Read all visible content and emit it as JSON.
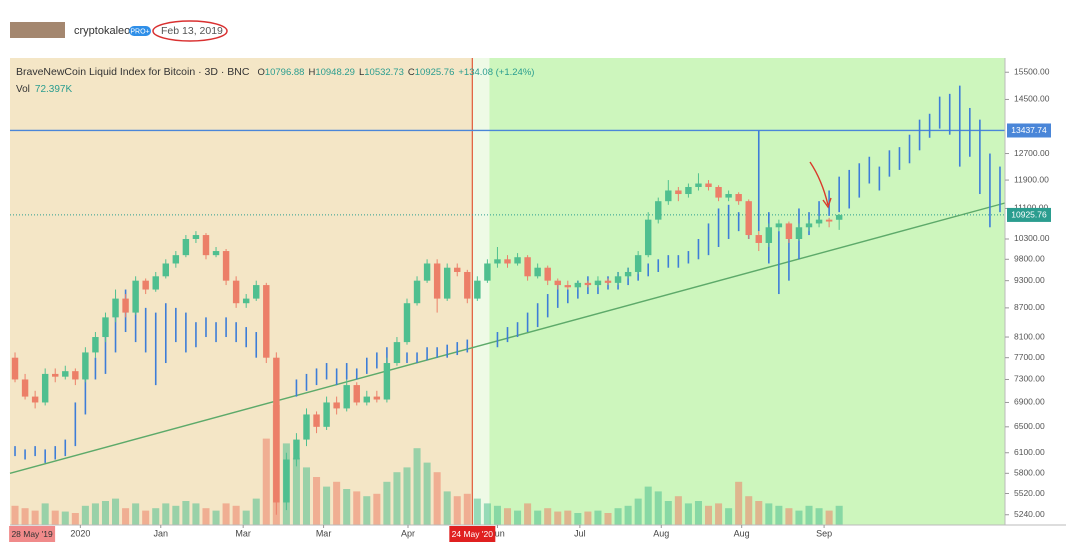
{
  "header": {
    "user": "cryptokaleo",
    "badge": "PRO+",
    "date": "Feb 13, 2019"
  },
  "chart_data": {
    "type": "candlestick",
    "legend": {
      "title": "BraveNewCoin Liquid Index for Bitcoin · 3D · BNC",
      "ohlc": [
        {
          "key": "O",
          "value": 10796.88
        },
        {
          "key": "H",
          "value": 10948.29
        },
        {
          "key": "L",
          "value": 10532.73
        },
        {
          "key": "C",
          "value": 10925.76
        }
      ],
      "change": "+134.08 (+1.24%)",
      "volume_key": "Vol",
      "volume": "72.397K"
    },
    "log_scale": true,
    "xlim": [
      -0.5,
      98.5
    ],
    "ylim": [
      5110,
      16050
    ],
    "yticks": [
      {
        "value": 15500,
        "label": "15500.00"
      },
      {
        "value": 14500,
        "label": "14500.00"
      },
      {
        "value": 12700,
        "label": "12700.00"
      },
      {
        "value": 11900,
        "label": "11900.00"
      },
      {
        "value": 11100,
        "label": "11100.00"
      },
      {
        "value": 10300,
        "label": "10300.00"
      },
      {
        "value": 9800,
        "label": "9800.00"
      },
      {
        "value": 9300,
        "label": "9300.00"
      },
      {
        "value": 8700,
        "label": "8700.00"
      },
      {
        "value": 8100,
        "label": "8100.00"
      },
      {
        "value": 7700,
        "label": "7700.00"
      },
      {
        "value": 7300,
        "label": "7300.00"
      },
      {
        "value": 6900,
        "label": "6900.00"
      },
      {
        "value": 6500,
        "label": "6500.00"
      },
      {
        "value": 6100,
        "label": "6100.00"
      },
      {
        "value": 5800,
        "label": "5800.00"
      },
      {
        "value": 5520,
        "label": "5520.00"
      },
      {
        "value": 5240,
        "label": "5240.00"
      }
    ],
    "xticks": [
      {
        "value": 6.5,
        "label": "2020"
      },
      {
        "value": 14.5,
        "label": "Jan"
      },
      {
        "value": 22.7,
        "label": "Mar"
      },
      {
        "value": 30.7,
        "label": "Mar"
      },
      {
        "value": 39.1,
        "label": "Apr"
      },
      {
        "value": 48,
        "label": "Jun"
      },
      {
        "value": 56.2,
        "label": "Jul"
      },
      {
        "value": 64.3,
        "label": "Aug"
      },
      {
        "value": 72.3,
        "label": "Aug"
      },
      {
        "value": 80.5,
        "label": "Sep"
      }
    ],
    "date_labels": [
      {
        "x": 1.7,
        "label": "28 May '19"
      },
      {
        "x": 45.5,
        "label": "24 May '20"
      }
    ],
    "regions": [
      {
        "x": [
          -0.5,
          45.5
        ],
        "color": "#f4e6c6"
      },
      {
        "x": [
          45.5,
          47.2
        ],
        "color": "#eefae6"
      },
      {
        "x": [
          47.2,
          98.5
        ],
        "color": "#cdf6bd"
      }
    ],
    "marker_line": {
      "x": 45.5,
      "color": "#e0593a"
    },
    "hline": {
      "y": 13437.74,
      "color": "#4a86d8"
    },
    "last_price": {
      "y": 10925.76,
      "color": "#2a9d8f"
    },
    "trend_line": {
      "x": [
        -0.5,
        98.5
      ],
      "y": [
        5800,
        11250
      ],
      "color": "#5daa6a"
    },
    "candles": {
      "up_color": "#4fbf8f",
      "down_color": "#ec7f68",
      "values": [
        [
          7700,
          7800,
          7250,
          7300
        ],
        [
          7300,
          7400,
          6950,
          7000
        ],
        [
          7000,
          7100,
          6800,
          6900
        ],
        [
          6900,
          7500,
          6850,
          7400
        ],
        [
          7400,
          7500,
          7250,
          7350
        ],
        [
          7350,
          7550,
          7300,
          7450
        ],
        [
          7450,
          7500,
          7200,
          7300
        ],
        [
          7300,
          7900,
          7250,
          7800
        ],
        [
          7800,
          8200,
          7700,
          8100
        ],
        [
          8100,
          8600,
          8000,
          8500
        ],
        [
          8500,
          9100,
          8400,
          8900
        ],
        [
          8900,
          9000,
          8500,
          8600
        ],
        [
          8600,
          9400,
          8550,
          9300
        ],
        [
          9300,
          9350,
          9000,
          9100
        ],
        [
          9100,
          9500,
          9050,
          9400
        ],
        [
          9400,
          9800,
          9350,
          9700
        ],
        [
          9700,
          10000,
          9600,
          9900
        ],
        [
          9900,
          10400,
          9850,
          10300
        ],
        [
          10300,
          10500,
          10200,
          10400
        ],
        [
          10400,
          10450,
          9800,
          9900
        ],
        [
          9900,
          10100,
          9850,
          10000
        ],
        [
          10000,
          10050,
          9200,
          9300
        ],
        [
          9300,
          9400,
          8700,
          8800
        ],
        [
          8800,
          9000,
          8700,
          8900
        ],
        [
          8900,
          9300,
          8850,
          9200
        ],
        [
          9200,
          9250,
          7600,
          7700
        ],
        [
          7700,
          7800,
          5240,
          5400
        ],
        [
          5400,
          6100,
          5300,
          6000
        ],
        [
          6000,
          6400,
          5900,
          6300
        ],
        [
          6300,
          6800,
          6200,
          6700
        ],
        [
          6700,
          6750,
          6400,
          6500
        ],
        [
          6500,
          7000,
          6450,
          6900
        ],
        [
          6900,
          7000,
          6700,
          6800
        ],
        [
          6800,
          7300,
          6750,
          7200
        ],
        [
          7200,
          7250,
          6850,
          6900
        ],
        [
          6900,
          7100,
          6850,
          7000
        ],
        [
          7000,
          7100,
          6900,
          6950
        ],
        [
          6950,
          7700,
          6900,
          7600
        ],
        [
          7600,
          8100,
          7550,
          8000
        ],
        [
          8000,
          8900,
          7950,
          8800
        ],
        [
          8800,
          9400,
          8750,
          9300
        ],
        [
          9300,
          9800,
          9250,
          9700
        ],
        [
          9700,
          9800,
          8600,
          8900
        ],
        [
          8900,
          9700,
          8850,
          9600
        ],
        [
          9600,
          9700,
          9400,
          9500
        ],
        [
          9500,
          9550,
          8800,
          8900
        ],
        [
          8900,
          9400,
          8850,
          9300
        ],
        [
          9300,
          9800,
          9250,
          9700
        ],
        [
          9700,
          10100,
          9600,
          9800
        ],
        [
          9800,
          9900,
          9600,
          9700
        ],
        [
          9700,
          9950,
          9650,
          9850
        ],
        [
          9850,
          9900,
          9300,
          9400
        ],
        [
          9400,
          9700,
          9350,
          9600
        ],
        [
          9600,
          9650,
          9200,
          9300
        ],
        [
          9300,
          9350,
          9100,
          9200
        ],
        [
          9200,
          9300,
          9100,
          9150
        ],
        [
          9150,
          9300,
          9100,
          9250
        ],
        [
          9250,
          9300,
          9150,
          9200
        ],
        [
          9200,
          9400,
          9150,
          9300
        ],
        [
          9300,
          9350,
          9200,
          9250
        ],
        [
          9250,
          9500,
          9200,
          9400
        ],
        [
          9400,
          9600,
          9350,
          9500
        ],
        [
          9500,
          10000,
          9450,
          9900
        ],
        [
          9900,
          11000,
          9850,
          10800
        ],
        [
          10800,
          11400,
          10700,
          11300
        ],
        [
          11300,
          11900,
          11200,
          11600
        ],
        [
          11600,
          11700,
          11300,
          11500
        ],
        [
          11500,
          11800,
          11400,
          11700
        ],
        [
          11700,
          12100,
          11600,
          11800
        ],
        [
          11800,
          11900,
          11600,
          11700
        ],
        [
          11700,
          11750,
          11300,
          11400
        ],
        [
          11400,
          11600,
          11300,
          11500
        ],
        [
          11500,
          11550,
          11200,
          11300
        ],
        [
          11300,
          11350,
          10300,
          10400
        ],
        [
          10400,
          10500,
          10000,
          10200
        ],
        [
          10200,
          10700,
          10100,
          10600
        ],
        [
          10600,
          10800,
          10500,
          10700
        ],
        [
          10700,
          10750,
          10200,
          10300
        ],
        [
          10300,
          10700,
          10250,
          10600
        ],
        [
          10600,
          10800,
          10500,
          10700
        ],
        [
          10700,
          10900,
          10600,
          10800
        ],
        [
          10800,
          10850,
          10600,
          10750
        ],
        [
          10796.88,
          10948.29,
          10532.73,
          10925.76
        ]
      ]
    },
    "fractal": {
      "color": "#3d7dd8",
      "values": [
        [
          6200,
          6050
        ],
        [
          6150,
          6000
        ],
        [
          6200,
          6050
        ],
        [
          6150,
          5950
        ],
        [
          6200,
          6000
        ],
        [
          6300,
          6050
        ],
        [
          6900,
          6200
        ],
        [
          7500,
          6700
        ],
        [
          7700,
          7300
        ],
        [
          8200,
          7400
        ],
        [
          8600,
          7800
        ],
        [
          9100,
          8200
        ],
        [
          9200,
          8000
        ],
        [
          8700,
          7800
        ],
        [
          8600,
          7200
        ],
        [
          8800,
          7600
        ],
        [
          8700,
          8000
        ],
        [
          8600,
          7800
        ],
        [
          8400,
          7900
        ],
        [
          8500,
          8100
        ],
        [
          8400,
          8000
        ],
        [
          8500,
          8100
        ],
        [
          8400,
          8000
        ],
        [
          8300,
          7900
        ],
        [
          8200,
          7700
        ],
        null,
        null,
        null,
        [
          7300,
          7000
        ],
        [
          7400,
          7100
        ],
        [
          7500,
          7200
        ],
        [
          7600,
          7300
        ],
        [
          7500,
          7200
        ],
        [
          7600,
          7300
        ],
        [
          7500,
          7300
        ],
        [
          7700,
          7400
        ],
        [
          7800,
          7500
        ],
        [
          7900,
          7600
        ],
        [
          7900,
          7700
        ],
        [
          7800,
          7600
        ],
        [
          7800,
          7600
        ],
        [
          7900,
          7650
        ],
        [
          7900,
          7700
        ],
        [
          7950,
          7700
        ],
        [
          8000,
          7750
        ],
        [
          8050,
          7800
        ],
        null,
        null,
        [
          8200,
          7900
        ],
        [
          8300,
          8000
        ],
        [
          8400,
          8100
        ],
        [
          8600,
          8200
        ],
        [
          8800,
          8300
        ],
        [
          9000,
          8500
        ],
        [
          9200,
          8700
        ],
        [
          9100,
          8800
        ],
        [
          9300,
          8900
        ],
        [
          9400,
          9000
        ],
        [
          9300,
          9000
        ],
        [
          9400,
          9100
        ],
        [
          9500,
          9100
        ],
        [
          9600,
          9200
        ],
        [
          9700,
          9300
        ],
        [
          9700,
          9400
        ],
        [
          9800,
          9500
        ],
        [
          9900,
          9600
        ],
        [
          9900,
          9600
        ],
        [
          10000,
          9700
        ],
        [
          10300,
          9800
        ],
        [
          10700,
          9900
        ],
        [
          11100,
          10100
        ],
        [
          11200,
          10300
        ],
        [
          11000,
          10500
        ],
        [
          11300,
          10300
        ],
        [
          13437,
          10500
        ],
        [
          11000,
          9700
        ],
        [
          10500,
          9000
        ],
        [
          10700,
          9300
        ],
        [
          11100,
          9800
        ],
        [
          11000,
          10400
        ],
        [
          11300,
          10700
        ],
        [
          11600,
          10900
        ],
        [
          12000,
          11000
        ],
        [
          12200,
          11100
        ],
        [
          12400,
          11400
        ],
        [
          12600,
          11800
        ],
        [
          12300,
          11600
        ],
        [
          12800,
          12000
        ],
        [
          12900,
          12200
        ],
        [
          13300,
          12400
        ],
        [
          13800,
          12800
        ],
        [
          14000,
          13200
        ],
        [
          14600,
          13500
        ],
        [
          14700,
          13300
        ],
        [
          15000,
          12300
        ],
        [
          14200,
          12600
        ],
        [
          13800,
          11500
        ],
        [
          12700,
          10600
        ],
        [
          12300,
          11000
        ]
      ]
    },
    "volume": {
      "values": [
        40,
        35,
        30,
        45,
        30,
        28,
        25,
        40,
        45,
        50,
        55,
        35,
        45,
        30,
        35,
        45,
        40,
        50,
        45,
        35,
        30,
        45,
        40,
        30,
        55,
        180,
        250,
        170,
        140,
        120,
        100,
        80,
        90,
        75,
        70,
        60,
        65,
        90,
        110,
        120,
        160,
        130,
        110,
        70,
        60,
        65,
        55,
        45,
        40,
        35,
        30,
        45,
        30,
        35,
        28,
        30,
        25,
        28,
        30,
        25,
        35,
        40,
        55,
        80,
        70,
        50,
        60,
        45,
        50,
        40,
        45,
        35,
        90,
        60,
        50,
        45,
        40,
        35,
        30,
        40,
        35,
        30,
        40
      ]
    }
  }
}
